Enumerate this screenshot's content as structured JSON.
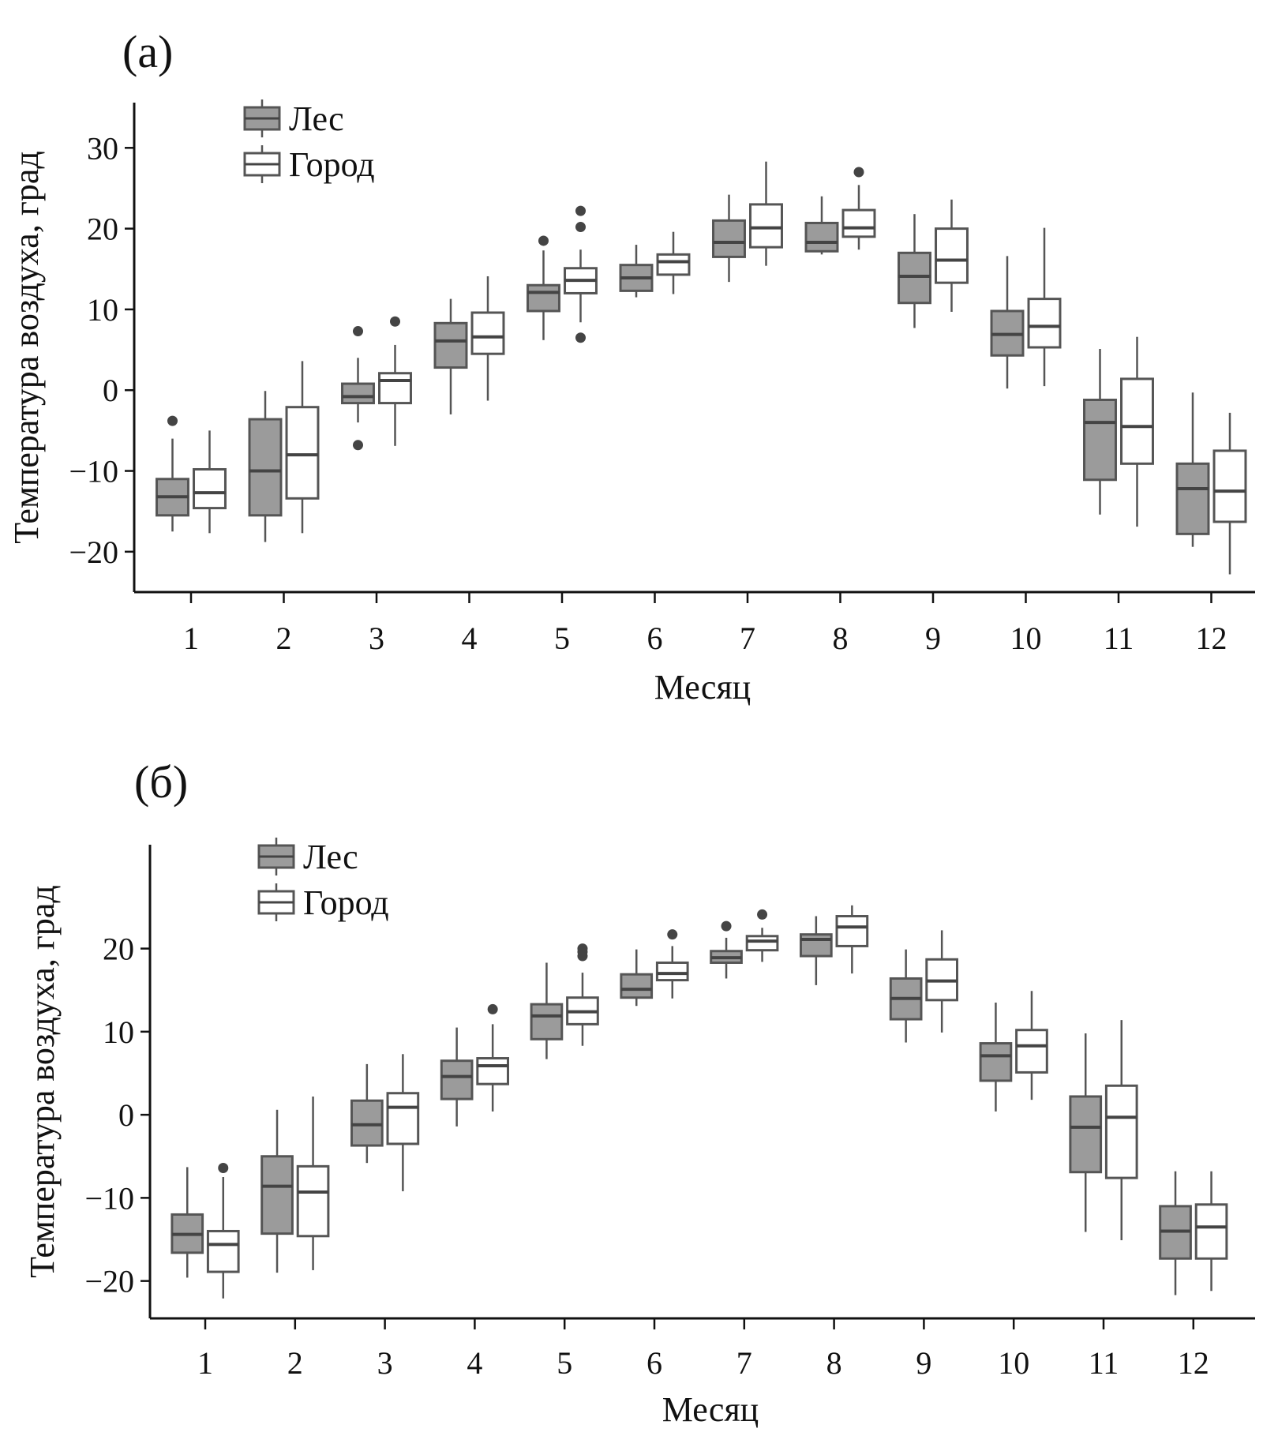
{
  "colors": {
    "forest_fill": "#9b9b9b",
    "city_fill": "#ffffff",
    "stroke": "#555555",
    "outlier": "#444444",
    "axis": "#111111"
  },
  "chart_data": [
    {
      "type": "boxplot",
      "panel_label": "(a)",
      "xlabel": "Месяц",
      "ylabel": "Температура воздуха, град",
      "ylim": [
        -25,
        35
      ],
      "yticks": [
        -20,
        -10,
        0,
        10,
        20,
        30
      ],
      "ytick_labels": [
        "−20",
        "−10",
        "0",
        "10",
        "20",
        "30"
      ],
      "categories": [
        "1",
        "2",
        "3",
        "4",
        "5",
        "6",
        "7",
        "8",
        "9",
        "10",
        "11",
        "12"
      ],
      "legend": {
        "position": "top-left",
        "entries": [
          "Лес",
          "Город"
        ]
      },
      "series": [
        {
          "name": "Лес",
          "boxes": [
            {
              "min": -17.5,
              "q1": -15.5,
              "median": -13.2,
              "q3": -11.0,
              "max": -6.0,
              "outliers": [
                -3.8
              ]
            },
            {
              "min": -18.8,
              "q1": -15.5,
              "median": -10.0,
              "q3": -3.6,
              "max": -0.1,
              "outliers": []
            },
            {
              "min": -4.0,
              "q1": -1.6,
              "median": -0.8,
              "q3": 0.8,
              "max": 4.0,
              "outliers": [
                7.3,
                -6.8
              ]
            },
            {
              "min": -3.0,
              "q1": 2.8,
              "median": 6.1,
              "q3": 8.3,
              "max": 11.3,
              "outliers": []
            },
            {
              "min": 6.2,
              "q1": 9.8,
              "median": 12.1,
              "q3": 13.0,
              "max": 17.3,
              "outliers": [
                18.5
              ]
            },
            {
              "min": 11.5,
              "q1": 12.3,
              "median": 13.9,
              "q3": 15.5,
              "max": 18.0,
              "outliers": []
            },
            {
              "min": 13.4,
              "q1": 16.5,
              "median": 18.3,
              "q3": 21.0,
              "max": 24.2,
              "outliers": []
            },
            {
              "min": 16.8,
              "q1": 17.2,
              "median": 18.3,
              "q3": 20.7,
              "max": 24.0,
              "outliers": []
            },
            {
              "min": 7.7,
              "q1": 10.8,
              "median": 14.1,
              "q3": 17.0,
              "max": 21.8,
              "outliers": []
            },
            {
              "min": 0.2,
              "q1": 4.3,
              "median": 6.9,
              "q3": 9.8,
              "max": 16.6,
              "outliers": []
            },
            {
              "min": -15.4,
              "q1": -11.1,
              "median": -4.0,
              "q3": -1.2,
              "max": 5.1,
              "outliers": []
            },
            {
              "min": -19.4,
              "q1": -17.8,
              "median": -12.2,
              "q3": -9.1,
              "max": -0.3,
              "outliers": []
            }
          ]
        },
        {
          "name": "Город",
          "boxes": [
            {
              "min": -17.7,
              "q1": -14.6,
              "median": -12.7,
              "q3": -9.8,
              "max": -5.0,
              "outliers": []
            },
            {
              "min": -17.7,
              "q1": -13.4,
              "median": -8.0,
              "q3": -2.1,
              "max": 3.6,
              "outliers": []
            },
            {
              "min": -6.9,
              "q1": -1.6,
              "median": 1.2,
              "q3": 2.1,
              "max": 5.6,
              "outliers": [
                8.5
              ]
            },
            {
              "min": -1.3,
              "q1": 4.5,
              "median": 6.6,
              "q3": 9.6,
              "max": 14.1,
              "outliers": []
            },
            {
              "min": 8.4,
              "q1": 12.0,
              "median": 13.6,
              "q3": 15.1,
              "max": 17.4,
              "outliers": [
                20.2,
                22.2,
                6.5
              ]
            },
            {
              "min": 11.9,
              "q1": 14.3,
              "median": 15.9,
              "q3": 16.8,
              "max": 19.6,
              "outliers": []
            },
            {
              "min": 15.4,
              "q1": 17.7,
              "median": 20.1,
              "q3": 23.0,
              "max": 28.3,
              "outliers": []
            },
            {
              "min": 17.4,
              "q1": 19.0,
              "median": 20.1,
              "q3": 22.3,
              "max": 25.4,
              "outliers": [
                27.0
              ]
            },
            {
              "min": 9.7,
              "q1": 13.3,
              "median": 16.1,
              "q3": 20.0,
              "max": 23.6,
              "outliers": []
            },
            {
              "min": 0.5,
              "q1": 5.3,
              "median": 7.9,
              "q3": 11.3,
              "max": 20.1,
              "outliers": []
            },
            {
              "min": -16.9,
              "q1": -9.1,
              "median": -4.5,
              "q3": 1.4,
              "max": 6.6,
              "outliers": []
            },
            {
              "min": -22.8,
              "q1": -16.3,
              "median": -12.5,
              "q3": -7.5,
              "max": -2.8,
              "outliers": []
            }
          ]
        }
      ]
    },
    {
      "type": "boxplot",
      "panel_label": "(б)",
      "xlabel": "Месяц",
      "ylabel": "Температура воздуха, град",
      "ylim": [
        -24.5,
        32
      ],
      "yticks": [
        -20,
        -10,
        0,
        10,
        20
      ],
      "ytick_labels": [
        "−20",
        "−10",
        "0",
        "10",
        "20"
      ],
      "categories": [
        "1",
        "2",
        "3",
        "4",
        "5",
        "6",
        "7",
        "8",
        "9",
        "10",
        "11",
        "12"
      ],
      "legend": {
        "position": "top-left",
        "entries": [
          "Лес",
          "Город"
        ]
      },
      "series": [
        {
          "name": "Лес",
          "boxes": [
            {
              "min": -19.6,
              "q1": -16.6,
              "median": -14.4,
              "q3": -12.0,
              "max": -6.3,
              "outliers": []
            },
            {
              "min": -19.0,
              "q1": -14.3,
              "median": -8.6,
              "q3": -5.0,
              "max": 0.6,
              "outliers": []
            },
            {
              "min": -5.8,
              "q1": -3.7,
              "median": -1.2,
              "q3": 1.7,
              "max": 6.1,
              "outliers": []
            },
            {
              "min": -1.4,
              "q1": 1.9,
              "median": 4.6,
              "q3": 6.5,
              "max": 10.5,
              "outliers": []
            },
            {
              "min": 6.7,
              "q1": 9.1,
              "median": 11.9,
              "q3": 13.3,
              "max": 18.3,
              "outliers": []
            },
            {
              "min": 13.1,
              "q1": 14.1,
              "median": 15.1,
              "q3": 16.9,
              "max": 19.9,
              "outliers": []
            },
            {
              "min": 16.4,
              "q1": 18.3,
              "median": 18.9,
              "q3": 19.7,
              "max": 21.3,
              "outliers": [
                22.7
              ]
            },
            {
              "min": 15.6,
              "q1": 19.1,
              "median": 21.1,
              "q3": 21.7,
              "max": 23.9,
              "outliers": []
            },
            {
              "min": 8.7,
              "q1": 11.5,
              "median": 14.0,
              "q3": 16.4,
              "max": 19.9,
              "outliers": []
            },
            {
              "min": 0.4,
              "q1": 4.1,
              "median": 7.1,
              "q3": 8.6,
              "max": 13.5,
              "outliers": []
            },
            {
              "min": -14.1,
              "q1": -6.9,
              "median": -1.5,
              "q3": 2.2,
              "max": 9.8,
              "outliers": []
            },
            {
              "min": -21.7,
              "q1": -17.3,
              "median": -14.0,
              "q3": -11.0,
              "max": -6.8,
              "outliers": []
            }
          ]
        },
        {
          "name": "Город",
          "boxes": [
            {
              "min": -22.1,
              "q1": -18.9,
              "median": -15.6,
              "q3": -14.0,
              "max": -7.5,
              "outliers": [
                -6.4
              ]
            },
            {
              "min": -18.7,
              "q1": -14.6,
              "median": -9.3,
              "q3": -6.2,
              "max": 2.2,
              "outliers": []
            },
            {
              "min": -9.2,
              "q1": -3.5,
              "median": 0.9,
              "q3": 2.6,
              "max": 7.3,
              "outliers": []
            },
            {
              "min": 0.4,
              "q1": 3.7,
              "median": 5.9,
              "q3": 6.8,
              "max": 10.9,
              "outliers": [
                12.7
              ]
            },
            {
              "min": 8.3,
              "q1": 10.9,
              "median": 12.4,
              "q3": 14.1,
              "max": 17.1,
              "outliers": [
                19.1,
                19.6,
                20.0
              ]
            },
            {
              "min": 14.0,
              "q1": 16.2,
              "median": 17.0,
              "q3": 18.3,
              "max": 20.3,
              "outliers": [
                21.7
              ]
            },
            {
              "min": 18.4,
              "q1": 19.8,
              "median": 20.9,
              "q3": 21.5,
              "max": 22.5,
              "outliers": [
                24.1
              ]
            },
            {
              "min": 17.0,
              "q1": 20.3,
              "median": 22.6,
              "q3": 23.9,
              "max": 25.2,
              "outliers": []
            },
            {
              "min": 9.9,
              "q1": 13.8,
              "median": 16.1,
              "q3": 18.7,
              "max": 22.2,
              "outliers": []
            },
            {
              "min": 1.8,
              "q1": 5.1,
              "median": 8.3,
              "q3": 10.2,
              "max": 14.9,
              "outliers": []
            },
            {
              "min": -15.1,
              "q1": -7.6,
              "median": -0.3,
              "q3": 3.5,
              "max": 11.4,
              "outliers": []
            },
            {
              "min": -21.2,
              "q1": -17.3,
              "median": -13.5,
              "q3": -10.8,
              "max": -6.8,
              "outliers": []
            }
          ]
        }
      ]
    }
  ]
}
